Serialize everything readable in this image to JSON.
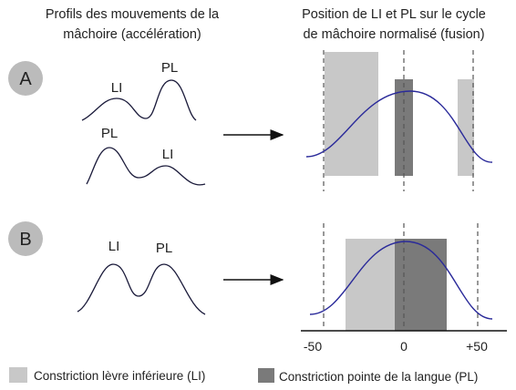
{
  "headers": {
    "left": [
      "Profils des mouvements de la",
      "mâchoire (accélération)"
    ],
    "right": [
      "Position de LI et PL sur le cycle",
      "de mâchoire normalisé (fusion)"
    ]
  },
  "panels": [
    {
      "label": "A",
      "profiles": [
        [
          "LI",
          "PL"
        ],
        [
          "PL",
          "LI"
        ]
      ]
    },
    {
      "label": "B",
      "profiles": [
        [
          "LI",
          "PL"
        ]
      ],
      "axis": [
        "-50",
        "0",
        "+50"
      ]
    }
  ],
  "legend": [
    "Constriction lèvre inférieure (LI)",
    "Constriction pointe de la langue (PL)"
  ]
}
